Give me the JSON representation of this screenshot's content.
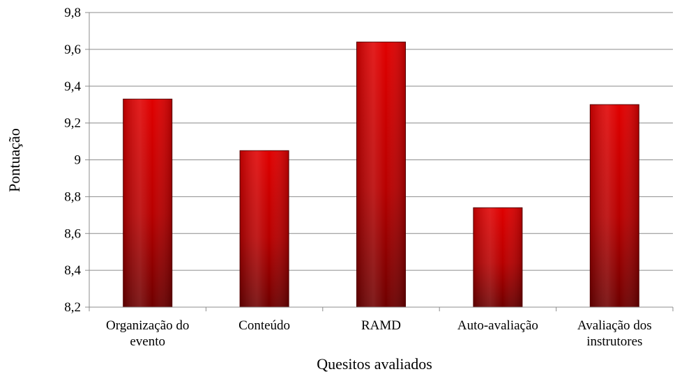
{
  "chart_data": {
    "type": "bar",
    "categories": [
      [
        "Organização do",
        "evento"
      ],
      [
        "Conteúdo"
      ],
      [
        "RAMD"
      ],
      [
        "Auto-avaliação"
      ],
      [
        "Avaliação dos",
        "instrutores"
      ]
    ],
    "values": [
      9.33,
      9.05,
      9.64,
      8.74,
      9.3
    ],
    "ylim": [
      8.2,
      9.8
    ],
    "yticks": [
      8.2,
      8.4,
      8.6,
      8.8,
      9.0,
      9.2,
      9.4,
      9.6,
      9.8
    ],
    "ytick_labels": [
      "8,2",
      "8,4",
      "8,6",
      "8,8",
      "9",
      "9,2",
      "9,4",
      "9,6",
      "9,8"
    ],
    "xlabel": "Quesitos avaliados",
    "ylabel": "Pontuação",
    "grid": true,
    "legend": "none",
    "bar_color": "#cc0000",
    "bar_color_dark": "#7a0000"
  }
}
